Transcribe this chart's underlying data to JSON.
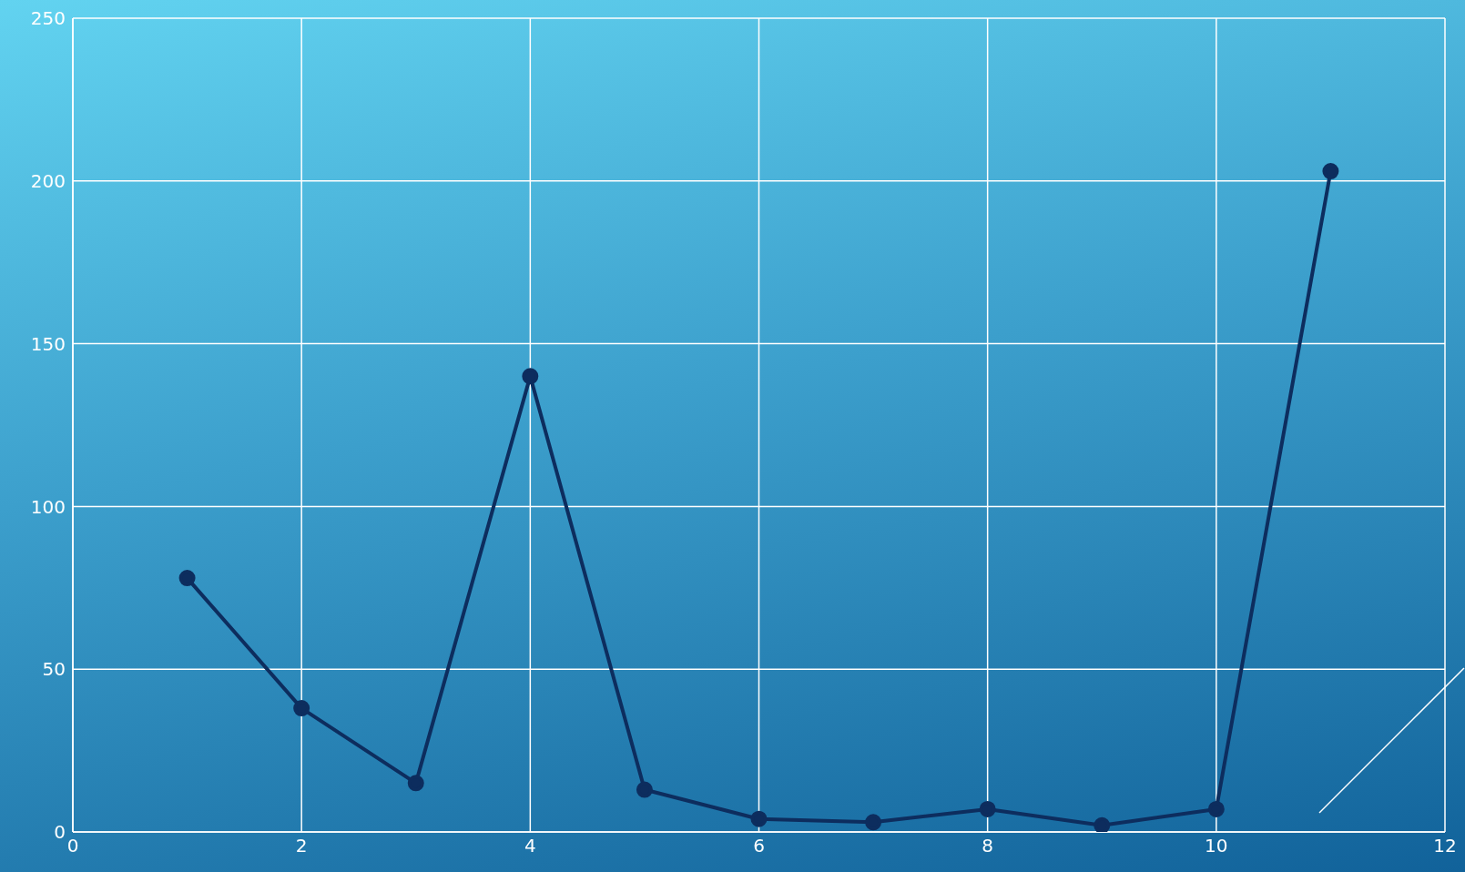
{
  "chart_data": {
    "type": "line",
    "x": [
      1,
      2,
      3,
      4,
      5,
      6,
      7,
      8,
      9,
      10,
      11
    ],
    "series": [
      {
        "color": "#0d2d5e",
        "values": [
          78,
          38,
          15,
          140,
          13,
          4,
          3,
          7,
          2,
          7,
          203
        ]
      }
    ],
    "xlim": [
      0,
      12
    ],
    "xticks": [
      0,
      2,
      4,
      6,
      8,
      10,
      12
    ],
    "ylim": [
      0,
      250
    ],
    "yticks": [
      0,
      50,
      100,
      150,
      200,
      250
    ],
    "grid": true,
    "marker": "circle",
    "line_style": "solid",
    "legend": false
  }
}
